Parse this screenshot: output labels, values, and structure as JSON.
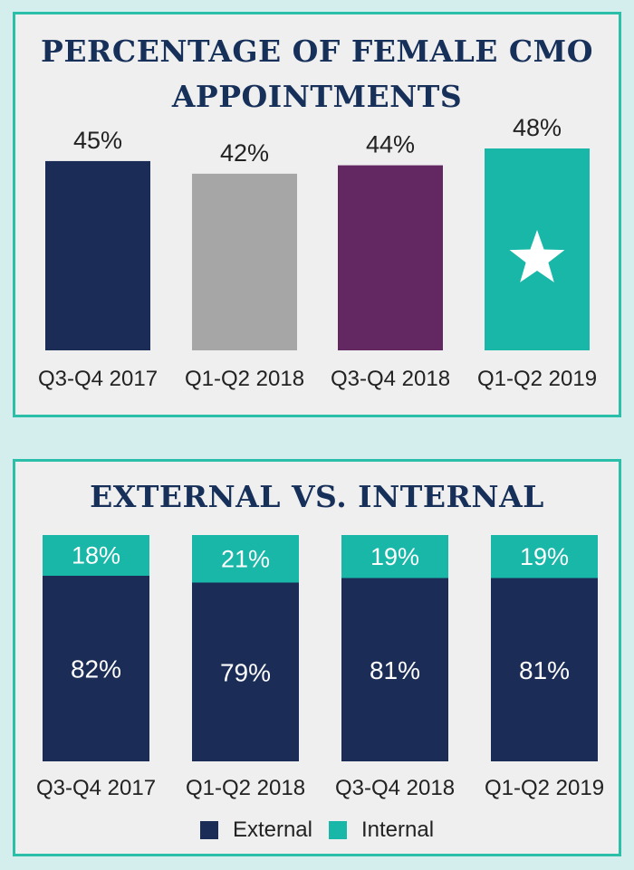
{
  "colors": {
    "background": "#d4eeee",
    "panel_bg": "#efefef",
    "panel_border": "#2bbfaa",
    "title": "#16305a",
    "external": "#1b2d57",
    "internal": "#18b7a8",
    "star": "#ffffff"
  },
  "chart_data": [
    {
      "type": "bar",
      "title_lines": [
        "PERCENTAGE OF FEMALE CMO",
        "APPOINTMENTS"
      ],
      "categories": [
        "Q3-Q4 2017",
        "Q1-Q2 2018",
        "Q3-Q4 2018",
        "Q1-Q2 2019"
      ],
      "values": [
        45,
        42,
        44,
        48
      ],
      "value_labels": [
        "45%",
        "42%",
        "44%",
        "48%"
      ],
      "bar_colors": [
        "#1b2d57",
        "#a6a6a6",
        "#632762",
        "#18b7a8"
      ],
      "highlight_icon": "star-icon",
      "highlight_index": 3,
      "ylim": [
        0,
        48
      ],
      "xlabel": "",
      "ylabel": ""
    },
    {
      "type": "bar",
      "stacked": true,
      "title": "EXTERNAL VS. INTERNAL",
      "categories": [
        "Q3-Q4 2017",
        "Q1-Q2 2018",
        "Q3-Q4 2018",
        "Q1-Q2 2019"
      ],
      "series": [
        {
          "name": "External",
          "values": [
            82,
            79,
            81,
            81
          ],
          "labels": [
            "82%",
            "79%",
            "81%",
            "81%"
          ],
          "color": "#1b2d57"
        },
        {
          "name": "Internal",
          "values": [
            18,
            21,
            19,
            19
          ],
          "labels": [
            "18%",
            "21%",
            "19%",
            "19%"
          ],
          "color": "#18b7a8"
        }
      ],
      "ylim": [
        0,
        100
      ],
      "legend": [
        "External",
        "Internal"
      ],
      "legend_position": "bottom-center"
    }
  ]
}
